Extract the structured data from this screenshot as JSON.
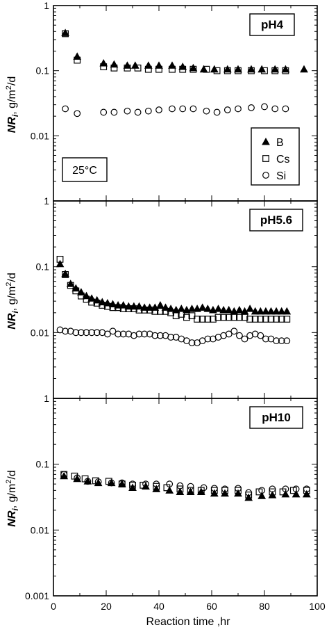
{
  "chart_data": [
    {
      "type": "scatter",
      "panel_label": "pH4",
      "annotation": "25°C",
      "xlim": [
        0,
        100
      ],
      "ylim": [
        0.001,
        1
      ],
      "yscale": "log",
      "yticks": [
        "0.01",
        "0.1",
        "1"
      ],
      "ylabel_main": "NR",
      "ylabel_sub": "i",
      "ylabel_unit": ", g/m",
      "ylabel_sup": "2",
      "ylabel_tail": "/d",
      "legend_position": "lower-right",
      "series": [
        {
          "name": "B",
          "marker": "filled-triangle",
          "x": [
            4.5,
            9,
            19,
            23,
            28,
            31,
            36,
            40,
            45,
            49,
            53,
            57,
            61,
            66,
            70,
            75,
            79,
            84,
            88,
            95
          ],
          "y": [
            0.38,
            0.165,
            0.13,
            0.125,
            0.12,
            0.12,
            0.12,
            0.12,
            0.12,
            0.115,
            0.11,
            0.105,
            0.105,
            0.105,
            0.105,
            0.105,
            0.105,
            0.105,
            0.105,
            0.105
          ]
        },
        {
          "name": "Cs",
          "marker": "open-square",
          "x": [
            4.5,
            9,
            19,
            23,
            28,
            32,
            36,
            40,
            45,
            49,
            53,
            58,
            62,
            66,
            70,
            75,
            80,
            84,
            88
          ],
          "y": [
            0.37,
            0.145,
            0.115,
            0.11,
            0.11,
            0.11,
            0.105,
            0.105,
            0.105,
            0.105,
            0.105,
            0.105,
            0.1,
            0.1,
            0.1,
            0.1,
            0.1,
            0.1,
            0.1
          ]
        },
        {
          "name": "Si",
          "marker": "open-circle",
          "x": [
            4.5,
            9,
            19,
            23,
            28,
            32,
            36,
            40,
            45,
            49,
            53,
            58,
            62,
            66,
            70,
            75,
            80,
            84,
            88
          ],
          "y": [
            0.026,
            0.022,
            0.023,
            0.023,
            0.024,
            0.023,
            0.024,
            0.025,
            0.026,
            0.026,
            0.026,
            0.024,
            0.023,
            0.025,
            0.026,
            0.027,
            0.028,
            0.026,
            0.026
          ]
        }
      ]
    },
    {
      "type": "scatter",
      "panel_label": "pH5.6",
      "xlim": [
        0,
        100
      ],
      "ylim": [
        0.001,
        1
      ],
      "yscale": "log",
      "yticks": [
        "0.01",
        "0.1",
        "1"
      ],
      "ylabel_main": "NR",
      "ylabel_sub": "i",
      "ylabel_unit": ", g/m",
      "ylabel_sup": "2",
      "ylabel_tail": "/d",
      "series": [
        {
          "name": "B",
          "marker": "filled-triangle",
          "x": [
            2.5,
            4.5,
            6.5,
            8.5,
            10.5,
            12.5,
            14.5,
            16.5,
            18.5,
            20.5,
            22.5,
            24.5,
            26.5,
            28.5,
            30.5,
            32.5,
            34.5,
            36.5,
            38.5,
            40.5,
            42.5,
            44.5,
            46.5,
            48.5,
            50.5,
            52.5,
            54.5,
            56.5,
            58.5,
            60.5,
            62.5,
            64.5,
            66.5,
            68.5,
            70.5,
            72.5,
            74.5,
            76.5,
            78.5,
            80.5,
            82.5,
            84.5,
            86.5,
            88.5
          ],
          "y": [
            0.11,
            0.078,
            0.055,
            0.047,
            0.041,
            0.036,
            0.033,
            0.031,
            0.029,
            0.028,
            0.027,
            0.026,
            0.026,
            0.025,
            0.025,
            0.025,
            0.024,
            0.024,
            0.024,
            0.026,
            0.024,
            0.023,
            0.022,
            0.023,
            0.022,
            0.023,
            0.023,
            0.024,
            0.023,
            0.022,
            0.023,
            0.022,
            0.022,
            0.021,
            0.022,
            0.021,
            0.023,
            0.021,
            0.021,
            0.021,
            0.021,
            0.021,
            0.021,
            0.021
          ]
        },
        {
          "name": "Cs",
          "marker": "open-square",
          "x": [
            2.5,
            4.5,
            6.5,
            8.5,
            10.5,
            12.5,
            14.5,
            16.5,
            18.5,
            20.5,
            22.5,
            24.5,
            26.5,
            28.5,
            30.5,
            32.5,
            34.5,
            36.5,
            38.5,
            40.5,
            42.5,
            44.5,
            46.5,
            48.5,
            50.5,
            52.5,
            54.5,
            56.5,
            58.5,
            60.5,
            62.5,
            64.5,
            66.5,
            68.5,
            70.5,
            72.5,
            74.5,
            76.5,
            78.5,
            80.5,
            82.5,
            84.5,
            86.5,
            88.5
          ],
          "y": [
            0.13,
            0.076,
            0.052,
            0.043,
            0.036,
            0.032,
            0.029,
            0.028,
            0.026,
            0.025,
            0.024,
            0.024,
            0.023,
            0.023,
            0.023,
            0.022,
            0.022,
            0.022,
            0.021,
            0.021,
            0.021,
            0.02,
            0.018,
            0.019,
            0.017,
            0.018,
            0.016,
            0.016,
            0.016,
            0.016,
            0.017,
            0.017,
            0.017,
            0.017,
            0.017,
            0.017,
            0.016,
            0.016,
            0.016,
            0.016,
            0.016,
            0.016,
            0.016,
            0.016
          ]
        },
        {
          "name": "Si",
          "marker": "open-circle",
          "x": [
            2.5,
            4.5,
            6.5,
            8.5,
            10.5,
            12.5,
            14.5,
            16.5,
            18.5,
            20.5,
            22.5,
            24.5,
            26.5,
            28.5,
            30.5,
            32.5,
            34.5,
            36.5,
            38.5,
            40.5,
            42.5,
            44.5,
            46.5,
            48.5,
            50.5,
            52.5,
            54.5,
            56.5,
            58.5,
            60.5,
            62.5,
            64.5,
            66.5,
            68.5,
            70.5,
            72.5,
            74.5,
            76.5,
            78.5,
            80.5,
            82.5,
            84.5,
            86.5,
            88.5
          ],
          "y": [
            0.011,
            0.0105,
            0.0105,
            0.01,
            0.01,
            0.01,
            0.01,
            0.01,
            0.01,
            0.0095,
            0.0105,
            0.0095,
            0.0095,
            0.0095,
            0.009,
            0.0095,
            0.0095,
            0.0095,
            0.009,
            0.009,
            0.009,
            0.0085,
            0.0085,
            0.008,
            0.0075,
            0.007,
            0.007,
            0.0075,
            0.008,
            0.008,
            0.0085,
            0.009,
            0.0095,
            0.0105,
            0.009,
            0.008,
            0.009,
            0.0095,
            0.009,
            0.008,
            0.008,
            0.0075,
            0.0075,
            0.0075
          ]
        }
      ]
    },
    {
      "type": "scatter",
      "panel_label": "pH10",
      "xlim": [
        0,
        100
      ],
      "ylim": [
        0.001,
        1
      ],
      "yscale": "log",
      "yticks": [
        "0.001",
        "0.01",
        "0.1",
        "1"
      ],
      "xticks": [
        "0",
        "20",
        "40",
        "60",
        "80",
        "100"
      ],
      "xlabel": "Reaction time ,hr",
      "ylabel_main": "NR",
      "ylabel_sub": "i",
      "ylabel_unit": ", g/m",
      "ylabel_sup": "2",
      "ylabel_tail": "/d",
      "series": [
        {
          "name": "B",
          "marker": "filled-triangle",
          "x": [
            4,
            9,
            13,
            17,
            22,
            26,
            30,
            35,
            39,
            44,
            48,
            52,
            56,
            61,
            65,
            70,
            74,
            79,
            83,
            88,
            92,
            96
          ],
          "y": [
            0.066,
            0.06,
            0.055,
            0.052,
            0.052,
            0.05,
            0.044,
            0.046,
            0.042,
            0.04,
            0.038,
            0.038,
            0.038,
            0.036,
            0.036,
            0.036,
            0.031,
            0.033,
            0.034,
            0.035,
            0.035,
            0.035
          ]
        },
        {
          "name": "Cs",
          "marker": "open-square",
          "x": [
            4,
            8,
            12,
            16,
            21,
            26,
            30,
            34,
            39,
            43,
            48,
            52,
            56,
            61,
            65,
            70,
            74,
            78,
            83,
            87,
            91,
            96
          ],
          "y": [
            0.07,
            0.066,
            0.06,
            0.056,
            0.055,
            0.05,
            0.048,
            0.048,
            0.046,
            0.044,
            0.042,
            0.04,
            0.04,
            0.04,
            0.04,
            0.04,
            0.034,
            0.038,
            0.038,
            0.038,
            0.04,
            0.04
          ]
        },
        {
          "name": "Si",
          "marker": "open-circle",
          "x": [
            4,
            9,
            13,
            17,
            22,
            26,
            30,
            35,
            39,
            44,
            48,
            52,
            57,
            61,
            65,
            70,
            74,
            79,
            83,
            88,
            92,
            96
          ],
          "y": [
            0.07,
            0.062,
            0.055,
            0.054,
            0.052,
            0.052,
            0.05,
            0.05,
            0.05,
            0.05,
            0.047,
            0.046,
            0.044,
            0.043,
            0.042,
            0.043,
            0.037,
            0.04,
            0.042,
            0.042,
            0.042,
            0.042
          ]
        }
      ]
    }
  ]
}
